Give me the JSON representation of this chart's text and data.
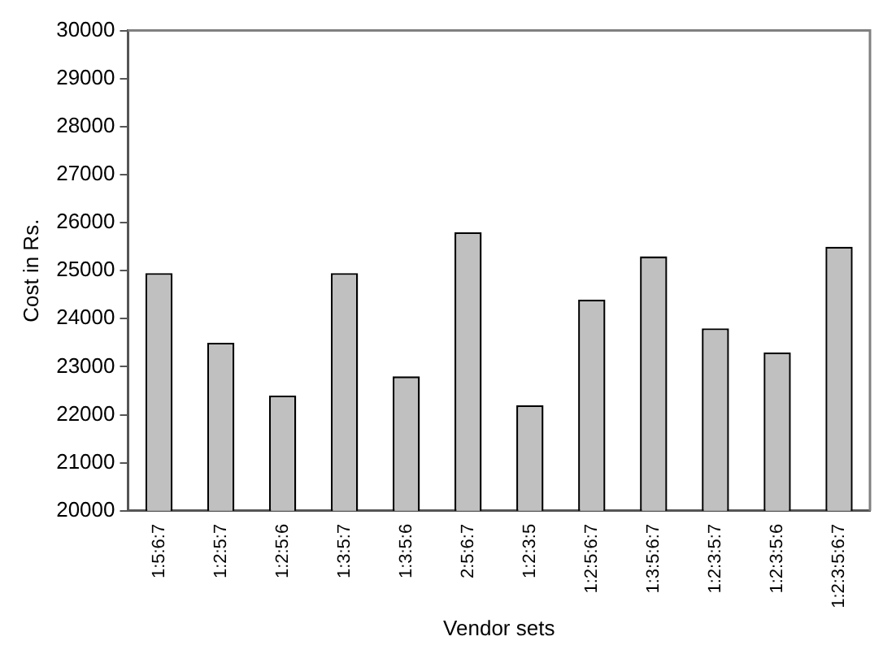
{
  "chart_data": {
    "type": "bar",
    "xlabel": "Vendor sets",
    "ylabel": "Cost in Rs.",
    "categories": [
      "1:5:6:7",
      "1:2:5:7",
      "1:2:5:6",
      "1:3:5:7",
      "1:3:5:6",
      "2:5:6:7",
      "1:2:3:5",
      "1:2:5:6:7",
      "1:3:5:6:7",
      "1:2:3:5:7",
      "1:2:3:5:6",
      "1:2:3:5:6:7"
    ],
    "values": [
      24950,
      23500,
      22400,
      24950,
      22800,
      25800,
      22200,
      24400,
      25300,
      23800,
      23300,
      25500
    ],
    "color": "#c0c0c0",
    "ylim": [
      20000,
      30000
    ],
    "yticks": [
      20000,
      21000,
      22000,
      23000,
      24000,
      25000,
      26000,
      27000,
      28000,
      29000,
      30000
    ],
    "grid": false
  }
}
